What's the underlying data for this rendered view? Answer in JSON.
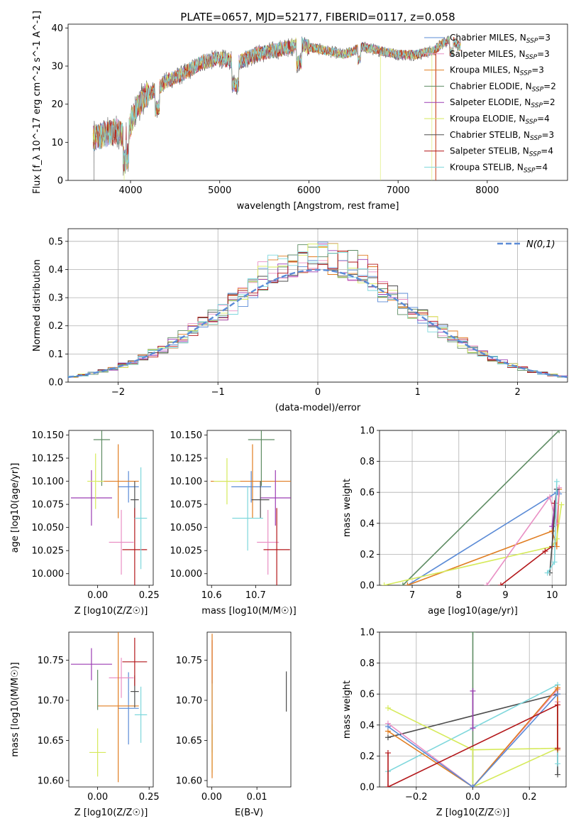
{
  "figure_title": "PLATE=0657, MJD=52177, FIBERID=0117, z=0.058",
  "series_colors": [
    "#5b8bd6",
    "#e98fc4",
    "#e07d21",
    "#5e8c63",
    "#9c3db3",
    "#d6ea5b",
    "#4d4d4d",
    "#b3171a",
    "#7ed7dc"
  ],
  "legend": [
    "Chabrier MILES, N_SSP=3",
    "Salpeter MILES, N_SSP=3",
    "Kroupa MILES, N_SSP=3",
    "Chabrier ELODIE, N_SSP=2",
    "Salpeter ELODIE, N_SSP=2",
    "Kroupa ELODIE, N_SSP=4",
    "Chabrier STELIB, N_SSP=3",
    "Salpeter STELIB, N_SSP=4",
    "Kroupa STELIB, N_SSP=4"
  ],
  "chart_data": [
    {
      "id": "spectrum",
      "type": "line",
      "xlabel": "wavelength [Angstrom, rest frame]",
      "ylabel": "Flux [f_λ 10^-17 erg cm^-2 s^-1 A^-1]",
      "xlim": [
        3300,
        8900
      ],
      "ylim": [
        0,
        41
      ],
      "xticks": [
        4000,
        5000,
        6000,
        7000,
        8000
      ],
      "yticks": [
        0,
        10,
        20,
        30,
        40
      ],
      "grid": false,
      "legend_position": "top-right",
      "continuum_x": [
        3580,
        3700,
        3850,
        3950,
        4050,
        4150,
        4300,
        4400,
        4600,
        4800,
        5000,
        5200,
        5400,
        5600,
        5800,
        5900,
        6000,
        6200,
        6400,
        6600,
        6800,
        7000,
        7200,
        7400,
        7500,
        7600,
        7700
      ],
      "continuum_y": [
        11,
        12,
        13,
        11,
        18,
        22,
        24,
        26,
        28,
        31,
        32,
        31,
        33,
        34,
        35,
        36,
        35,
        34,
        33,
        35,
        34,
        33,
        33,
        34,
        36,
        37,
        35
      ],
      "dropouts": [
        {
          "series": 5,
          "x": 6800
        },
        {
          "series": 2,
          "x": 7420
        },
        {
          "series": 7,
          "x": 7425
        },
        {
          "series": 6,
          "x": 3590
        },
        {
          "series": 5,
          "x": 3930
        },
        {
          "series": 5,
          "x": 7380
        }
      ]
    },
    {
      "id": "residuals",
      "type": "step",
      "xlabel": "(data-model)/error",
      "ylabel": "Normed distribution",
      "xlim": [
        -2.5,
        2.5
      ],
      "ylim": [
        0,
        0.545
      ],
      "xticks": [
        -2,
        -1,
        0,
        1,
        2
      ],
      "yticks": [
        0.0,
        0.1,
        0.2,
        0.3,
        0.4,
        0.5
      ],
      "grid": true,
      "legend_position": "top-right",
      "reference_label": "N(0,1)",
      "bins": 50
    },
    {
      "id": "age-vs-Z",
      "type": "errorbar",
      "xlabel": "Z [log10(Z/Z☉)]",
      "ylabel": "age  [log10(age/yr)]",
      "xlim": [
        -0.14,
        0.27
      ],
      "ylim": [
        9.9875,
        10.155
      ],
      "xticks": [
        0.0,
        0.25
      ],
      "yticks": [
        10.0,
        10.025,
        10.05,
        10.075,
        10.1,
        10.125,
        10.15
      ],
      "points": [
        {
          "series": 0,
          "x": 0.15,
          "y": 10.094,
          "xerr": 0.05,
          "yerr": 0.017
        },
        {
          "series": 1,
          "x": 0.115,
          "y": 10.034,
          "xerr": 0.06,
          "yerr": 0.035
        },
        {
          "series": 2,
          "x": 0.1,
          "y": 10.1,
          "xerr": 0.1,
          "yerr": 0.04
        },
        {
          "series": 3,
          "x": 0.02,
          "y": 10.145,
          "xerr": 0.04,
          "yerr": 0.05
        },
        {
          "series": 4,
          "x": -0.03,
          "y": 10.082,
          "xerr": 0.1,
          "yerr": 0.03
        },
        {
          "series": 5,
          "x": -0.01,
          "y": 10.1,
          "xerr": 0.04,
          "yerr": 0.03
        },
        {
          "series": 6,
          "x": 0.18,
          "y": 10.08,
          "xerr": 0.02,
          "yerr": 0.02
        },
        {
          "series": 7,
          "x": 0.18,
          "y": 10.026,
          "xerr": 0.06,
          "yerr": 0.045
        },
        {
          "series": 8,
          "x": 0.21,
          "y": 10.06,
          "xerr": 0.03,
          "yerr": 0.055
        }
      ]
    },
    {
      "id": "age-vs-mass",
      "type": "errorbar",
      "xlabel": "mass [log10(M/M☉)]",
      "xlim": [
        10.59,
        10.78
      ],
      "ylim": [
        9.9875,
        10.155
      ],
      "xticks": [
        10.6,
        10.7
      ],
      "yticks": [
        10.0,
        10.025,
        10.05,
        10.075,
        10.1,
        10.125,
        10.15
      ],
      "points": [
        {
          "series": 0,
          "x": 10.69,
          "y": 10.094,
          "xerr": 0.045,
          "yerr": 0.017
        },
        {
          "series": 1,
          "x": 10.728,
          "y": 10.034,
          "xerr": 0.025,
          "yerr": 0.035
        },
        {
          "series": 2,
          "x": 10.693,
          "y": 10.1,
          "xerr": 0.095,
          "yerr": 0.04
        },
        {
          "series": 3,
          "x": 10.713,
          "y": 10.145,
          "xerr": 0.03,
          "yerr": 0.05
        },
        {
          "series": 4,
          "x": 10.745,
          "y": 10.082,
          "xerr": 0.035,
          "yerr": 0.03
        },
        {
          "series": 5,
          "x": 10.635,
          "y": 10.1,
          "xerr": 0.03,
          "yerr": 0.025
        },
        {
          "series": 6,
          "x": 10.711,
          "y": 10.08,
          "xerr": 0.02,
          "yerr": 0.02
        },
        {
          "series": 7,
          "x": 10.748,
          "y": 10.026,
          "xerr": 0.03,
          "yerr": 0.045
        },
        {
          "series": 8,
          "x": 10.682,
          "y": 10.06,
          "xerr": 0.035,
          "yerr": 0.035
        }
      ]
    },
    {
      "id": "weight-vs-age",
      "type": "line",
      "xlabel": "age  [log10(age/yr)]",
      "ylabel": "mass weight",
      "xlim": [
        6.3,
        10.3
      ],
      "ylim": [
        0,
        1.0
      ],
      "xticks": [
        7,
        8,
        9,
        10
      ],
      "yticks": [
        0.0,
        0.2,
        0.4,
        0.6,
        0.8,
        1.0
      ],
      "grid": true,
      "lines": [
        {
          "series": 3,
          "x": [
            6.8,
            10.15
          ],
          "y": [
            0.0,
            1.0
          ]
        },
        {
          "series": 0,
          "x": [
            6.9,
            10.1,
            10.15,
            10.12
          ],
          "y": [
            0.0,
            0.6,
            0.59,
            0.6
          ]
        },
        {
          "series": 2,
          "x": [
            6.9,
            10.0,
            10.1,
            10.15
          ],
          "y": [
            0.0,
            0.35,
            0.25,
            0.62
          ]
        },
        {
          "series": 5,
          "x": [
            6.4,
            10.0,
            10.1,
            10.2
          ],
          "y": [
            0.0,
            0.25,
            0.3,
            0.52
          ]
        },
        {
          "series": 1,
          "x": [
            8.6,
            9.95,
            10.1,
            10.15
          ],
          "y": [
            0.0,
            0.57,
            0.4,
            0.63
          ]
        },
        {
          "series": 7,
          "x": [
            8.9,
            9.85,
            10.0,
            10.05
          ],
          "y": [
            0.0,
            0.22,
            0.25,
            0.53
          ]
        },
        {
          "series": 4,
          "x": [
            10.0,
            10.1
          ],
          "y": [
            0.38,
            0.62
          ]
        },
        {
          "series": 6,
          "x": [
            9.95,
            10.1
          ],
          "y": [
            0.08,
            0.62
          ]
        },
        {
          "series": 8,
          "x": [
            9.9,
            10.05,
            10.1
          ],
          "y": [
            0.08,
            0.15,
            0.67
          ]
        }
      ]
    },
    {
      "id": "mass-vs-Z",
      "type": "errorbar",
      "xlabel": "Z [log10(Z/Z☉)]",
      "ylabel": "mass [log10(M/M☉)]",
      "xlim": [
        -0.14,
        0.27
      ],
      "ylim": [
        10.592,
        10.785
      ],
      "xticks": [
        0.0,
        0.25
      ],
      "yticks": [
        10.6,
        10.65,
        10.7,
        10.75
      ],
      "points": [
        {
          "series": 0,
          "x": 0.15,
          "y": 10.69,
          "xerr": 0.05,
          "yerr": 0.045
        },
        {
          "series": 1,
          "x": 0.115,
          "y": 10.728,
          "xerr": 0.06,
          "yerr": 0.025
        },
        {
          "series": 2,
          "x": 0.1,
          "y": 10.693,
          "xerr": 0.1,
          "yerr": 0.095
        },
        {
          "series": 3,
          "x": 0.0,
          "y": 10.713,
          "xerr": 0.0,
          "yerr": 0.025
        },
        {
          "series": 4,
          "x": -0.03,
          "y": 10.745,
          "xerr": 0.1,
          "yerr": 0.02
        },
        {
          "series": 5,
          "x": 0.0,
          "y": 10.635,
          "xerr": 0.04,
          "yerr": 0.03
        },
        {
          "series": 6,
          "x": 0.18,
          "y": 10.711,
          "xerr": 0.02,
          "yerr": 0.02
        },
        {
          "series": 7,
          "x": 0.18,
          "y": 10.748,
          "xerr": 0.06,
          "yerr": 0.03
        },
        {
          "series": 8,
          "x": 0.21,
          "y": 10.682,
          "xerr": 0.03,
          "yerr": 0.035
        }
      ]
    },
    {
      "id": "mass-vs-EBV",
      "type": "errorbar",
      "xlabel": "E(B-V)",
      "xlim": [
        -0.001,
        0.0175
      ],
      "ylim": [
        10.592,
        10.785
      ],
      "xticks": [
        0.0,
        0.01
      ],
      "yticks": [
        10.6,
        10.65,
        10.7,
        10.75
      ],
      "points": [
        {
          "series": 7,
          "x": 0.0001,
          "y": 10.748,
          "xerr": 0.0,
          "yerr": 0.027
        },
        {
          "series": 8,
          "x": 0.0001,
          "y": 10.68,
          "xerr": 0.0,
          "yerr": 0.045
        },
        {
          "series": 5,
          "x": 0.0001,
          "y": 10.64,
          "xerr": 0.0,
          "yerr": 0.03
        },
        {
          "series": 2,
          "x": 0.0001,
          "y": 10.693,
          "xerr": 0.0,
          "yerr": 0.09
        },
        {
          "series": 6,
          "x": 0.0165,
          "y": 10.711,
          "xerr": 0.0,
          "yerr": 0.025
        }
      ]
    },
    {
      "id": "weight-vs-Z",
      "type": "line",
      "xlabel": "Z [log10(Z/Z☉)]",
      "ylabel": "mass weight",
      "xlim": [
        -0.33,
        0.33
      ],
      "ylim": [
        0,
        1.0
      ],
      "xticks": [
        -0.2,
        0.0,
        0.2
      ],
      "yticks": [
        0.0,
        0.2,
        0.4,
        0.6,
        0.8,
        1.0
      ],
      "grid": true,
      "lines": [
        {
          "series": 3,
          "x": [
            0.0,
            0.0
          ],
          "y": [
            0.0,
            1.0
          ]
        },
        {
          "series": 6,
          "x": [
            -0.3,
            0.3,
            0.3
          ],
          "y": [
            0.32,
            0.6,
            0.08
          ]
        },
        {
          "series": 8,
          "x": [
            -0.3,
            0.3,
            0.3
          ],
          "y": [
            0.1,
            0.66,
            0.15
          ]
        },
        {
          "series": 5,
          "x": [
            -0.3,
            0.0,
            0.3,
            0.0,
            0.0
          ],
          "y": [
            0.51,
            0.24,
            0.25,
            0.0,
            0.24
          ]
        },
        {
          "series": 1,
          "x": [
            -0.3,
            0.0,
            0.3,
            0.3
          ],
          "y": [
            0.41,
            0.0,
            0.63,
            0.55
          ]
        },
        {
          "series": 2,
          "x": [
            -0.3,
            0.0,
            0.3,
            0.3
          ],
          "y": [
            0.36,
            0.0,
            0.64,
            0.24
          ]
        },
        {
          "series": 0,
          "x": [
            -0.3,
            0.0,
            0.3
          ],
          "y": [
            0.39,
            0.0,
            0.6
          ]
        },
        {
          "series": 7,
          "x": [
            -0.3,
            -0.3,
            0.3,
            0.3
          ],
          "y": [
            0.22,
            0.0,
            0.53,
            0.25
          ]
        },
        {
          "series": 4,
          "x": [
            0.0,
            0.0
          ],
          "y": [
            0.38,
            0.62
          ]
        }
      ]
    }
  ]
}
